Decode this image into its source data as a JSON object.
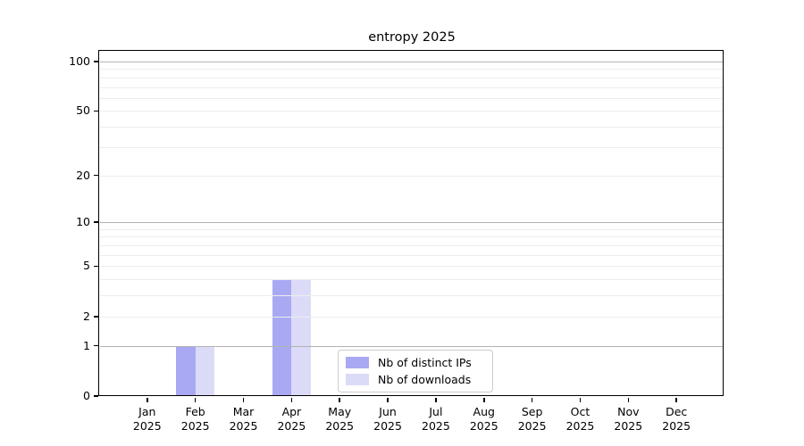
{
  "figure": {
    "background": "#ffffff"
  },
  "chart_data": {
    "type": "bar",
    "title": "entropy 2025",
    "categories": [
      "Jan",
      "Feb",
      "Mar",
      "Apr",
      "May",
      "Jun",
      "Jul",
      "Aug",
      "Sep",
      "Oct",
      "Nov",
      "Dec"
    ],
    "year": "2025",
    "series": [
      {
        "name": "Nb of distinct IPs",
        "color": "#a9a9f3",
        "values": [
          0,
          1,
          0,
          4,
          0,
          0,
          0,
          0,
          0,
          0,
          0,
          0
        ]
      },
      {
        "name": "Nb of downloads",
        "color": "#dbdbf8",
        "values": [
          0,
          1,
          0,
          4,
          0,
          0,
          0,
          0,
          0,
          0,
          0,
          0
        ]
      }
    ],
    "yscale": "log1p",
    "ylim": [
      0,
      114.6
    ],
    "yticks": [
      0,
      1,
      2,
      5,
      10,
      20,
      50,
      100
    ],
    "grid": {
      "major": [
        1,
        10,
        100
      ],
      "minor": [
        2,
        3,
        4,
        5,
        6,
        7,
        8,
        9,
        20,
        30,
        40,
        50,
        60,
        70,
        80,
        90
      ],
      "major_color": "#b3b3b3",
      "minor_color": "#ececec"
    },
    "legend_position": "inside-bottom-center",
    "xlabel": "",
    "ylabel": ""
  }
}
